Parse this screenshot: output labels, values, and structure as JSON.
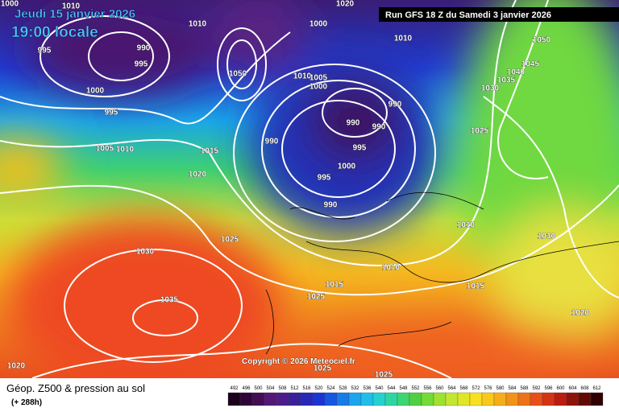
{
  "header": {
    "valid_time": "Jeudi 15 janvier 2026",
    "local_time": "19:00 locale",
    "run": "Run GFS 18 Z du Samedi 3 janvier 2026"
  },
  "copyright": "Copyright © 2026 Meteociel.fr",
  "isobar_labels": [
    "1000",
    "1010",
    "1010",
    "1020",
    "1000",
    "1010",
    "1050",
    "1045",
    "1040",
    "1035",
    "1030",
    "990",
    "995",
    "995",
    "1000",
    "995",
    "1050",
    "1010",
    "1005",
    "1000",
    "990",
    "990",
    "990",
    "990",
    "995",
    "1000",
    "995",
    "990",
    "1005",
    "1010",
    "1015",
    "1020",
    "1025",
    "1025",
    "1030",
    "1035",
    "1010",
    "1030",
    "1010",
    "1015",
    "1015",
    "1025",
    "1020",
    "1020",
    "1025",
    "1025"
  ],
  "footer": {
    "title": "Géop. Z500 & pression au sol",
    "lead": "(+ 288h)"
  },
  "scale": [
    492,
    496,
    500,
    504,
    508,
    512,
    516,
    520,
    524,
    528,
    532,
    536,
    540,
    544,
    548,
    552,
    556,
    560,
    564,
    568,
    572,
    576,
    580,
    584,
    588,
    592,
    596,
    600,
    604,
    608,
    612
  ]
}
